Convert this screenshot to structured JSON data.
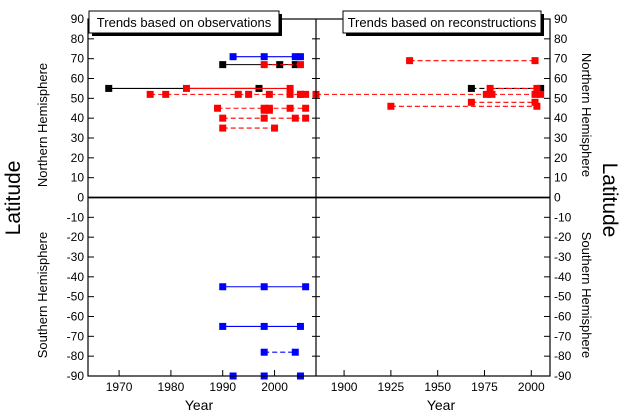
{
  "chart_data": {
    "type": "scatter",
    "ylabel_left": "Latitude",
    "ylabel_right": "Latitude",
    "hemisphere_labels": {
      "north": "Northern Hemisphere",
      "south": "Southern Hemisphere"
    },
    "ylim": [
      -90,
      90
    ],
    "yticks": [
      90,
      80,
      70,
      60,
      50,
      40,
      30,
      20,
      10,
      0,
      -10,
      -20,
      -30,
      -40,
      -50,
      -60,
      -70,
      -80,
      -90
    ],
    "panels": [
      {
        "title": "Trends based on observations",
        "xlabel": "Year",
        "xlim": [
          1964,
          2008
        ],
        "xticks": [
          1970,
          1980,
          1990,
          2000
        ],
        "segments": [
          {
            "color": "#0000ff",
            "style": "solid",
            "y": 71,
            "points": [
              1992,
              1998,
              2004,
              2005
            ]
          },
          {
            "color": "#000000",
            "style": "solid",
            "y": 67,
            "points": [
              1990,
              2001,
              2004
            ]
          },
          {
            "color": "#ff0000",
            "style": "dashed",
            "y": 67,
            "points": [
              1998,
              2005
            ]
          },
          {
            "color": "#000000",
            "style": "solid",
            "y": 55,
            "points": [
              1968,
              1997
            ]
          },
          {
            "color": "#ff0000",
            "style": "solid",
            "y": 55,
            "points": [
              1983,
              2003
            ]
          },
          {
            "color": "#ff0000",
            "style": "dashed",
            "y": 52,
            "points": [
              1976,
              1979,
              1993,
              1995,
              1999,
              2003,
              2005
            ]
          },
          {
            "color": "#ff0000",
            "style": "solid",
            "y": 52,
            "points": [
              2005,
              2006
            ]
          },
          {
            "color": "#ff0000",
            "style": "dashed",
            "y": 45,
            "points": [
              1989,
              1998,
              1999,
              2003,
              2006
            ]
          },
          {
            "color": "#ff0000",
            "style": "dashed",
            "y": 44,
            "points": [
              1998,
              1999
            ]
          },
          {
            "color": "#ff0000",
            "style": "dashed",
            "y": 40,
            "points": [
              1990,
              1998,
              2004,
              2006
            ]
          },
          {
            "color": "#ff0000",
            "style": "dashed",
            "y": 35,
            "points": [
              1990,
              2000
            ]
          },
          {
            "color": "#0000ff",
            "style": "solid",
            "y": -45,
            "points": [
              1990,
              1998,
              2006
            ]
          },
          {
            "color": "#0000ff",
            "style": "solid",
            "y": -65,
            "points": [
              1990,
              1998,
              2005
            ]
          },
          {
            "color": "#0000ff",
            "style": "dashed",
            "y": -78,
            "points": [
              1998,
              2004
            ]
          },
          {
            "color": "#0000ff",
            "style": "solid",
            "y": -90,
            "points": [
              1992,
              1998,
              2005
            ]
          }
        ]
      },
      {
        "title": "Trends based on reconstructions",
        "xlabel": "Year",
        "xlim": [
          1885,
          2010
        ],
        "xticks": [
          1900,
          1925,
          1950,
          1975,
          2000
        ],
        "segments": [
          {
            "color": "#ff0000",
            "style": "dashed",
            "y": 69,
            "points": [
              1935,
              2002
            ]
          },
          {
            "color": "#000000",
            "style": "dashed",
            "y": 55,
            "points": [
              1968,
              2005
            ]
          },
          {
            "color": "#ff0000",
            "style": "dashed",
            "y": 55,
            "points": [
              1978,
              2003
            ]
          },
          {
            "color": "#ff0000",
            "style": "dashed",
            "y": 52,
            "points": [
              1885,
              1976,
              1979,
              2002,
              2005
            ]
          },
          {
            "color": "#ff0000",
            "style": "dashed",
            "y": 48,
            "points": [
              1968,
              2002
            ]
          },
          {
            "color": "#ff0000",
            "style": "dashed",
            "y": 46,
            "points": [
              1925,
              2003
            ]
          }
        ]
      }
    ]
  }
}
